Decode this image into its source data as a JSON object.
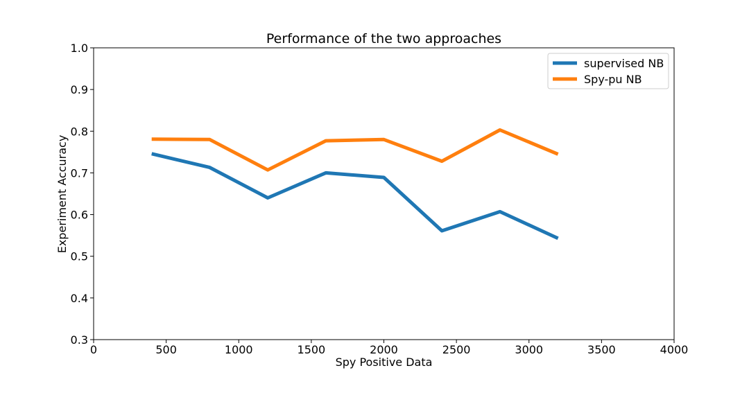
{
  "chart_data": {
    "type": "line",
    "title": "Performance of the two approaches",
    "xlabel": "Spy Positive Data",
    "ylabel": "Experiment Accuracy",
    "xlim": [
      0,
      4000
    ],
    "ylim": [
      0.3,
      1.0
    ],
    "xticks": [
      0,
      500,
      1000,
      1500,
      2000,
      2500,
      3000,
      3500,
      4000
    ],
    "yticks": [
      0.3,
      0.4,
      0.5,
      0.6,
      0.7,
      0.8,
      0.9,
      1.0
    ],
    "xtick_labels": [
      "0",
      "500",
      "1000",
      "1500",
      "2000",
      "2500",
      "3000",
      "3500",
      "4000"
    ],
    "ytick_labels": [
      "0.3",
      "0.4",
      "0.5",
      "0.6",
      "0.7",
      "0.8",
      "0.9",
      "1.0"
    ],
    "grid": false,
    "legend_position": "top-right",
    "x": [
      400,
      800,
      1200,
      1600,
      2000,
      2400,
      2800,
      3200
    ],
    "series": [
      {
        "name": "supervised NB",
        "color": "#1f77b4",
        "values": [
          0.746,
          0.713,
          0.64,
          0.7,
          0.689,
          0.561,
          0.607,
          0.543
        ]
      },
      {
        "name": "Spy-pu NB",
        "color": "#ff7f0e",
        "values": [
          0.781,
          0.78,
          0.707,
          0.777,
          0.78,
          0.728,
          0.803,
          0.745
        ]
      }
    ]
  }
}
